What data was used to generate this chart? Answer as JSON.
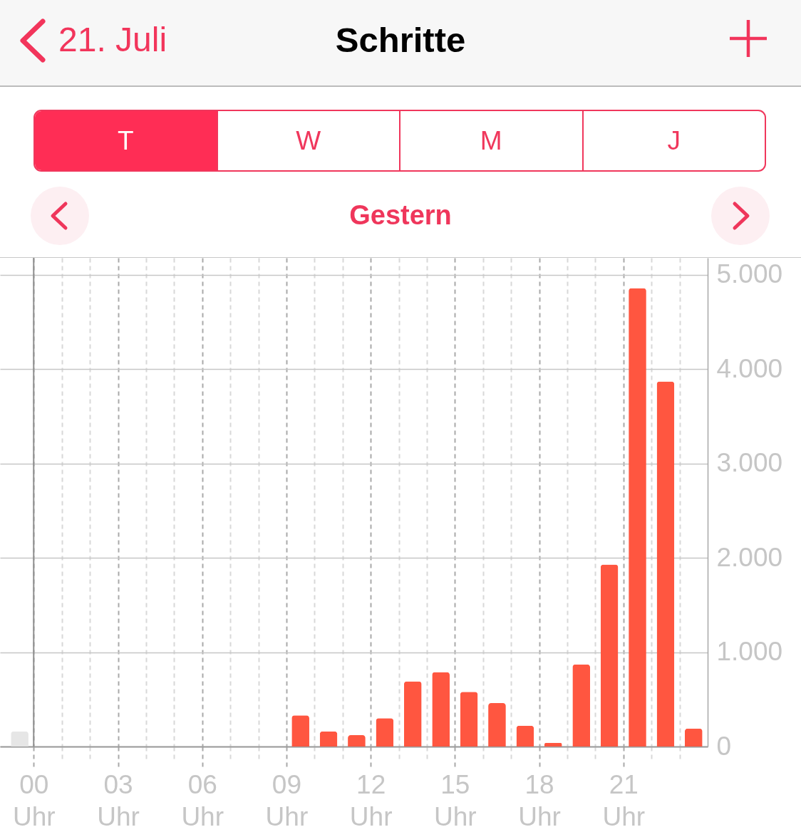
{
  "chart_data": {
    "type": "bar",
    "title": "Schritte",
    "subtitle": "Gestern",
    "annotations": [
      "21. Juli",
      "T",
      "W",
      "M",
      "J"
    ],
    "series": [
      {
        "color": "#ff5640",
        "x": [
          9.5,
          10.5,
          11.5,
          12.5,
          13.5,
          14.5,
          15.5,
          16.5,
          17.5,
          18.5,
          19.5,
          20.5,
          21.5,
          22.5,
          23.5
        ],
        "values": [
          330,
          160,
          120,
          300,
          690,
          790,
          580,
          460,
          220,
          40,
          870,
          1930,
          4860,
          3870,
          190
        ]
      },
      {
        "color": "#e6e6e6",
        "x": [
          -0.5
        ],
        "values": [
          160
        ]
      }
    ],
    "xlim": [
      -1.2,
      24
    ],
    "xticks": [
      {
        "value": 0,
        "label": "00 Uhr"
      },
      {
        "value": 1,
        "label": null
      },
      {
        "value": 2,
        "label": null
      },
      {
        "value": 3,
        "label": "03 Uhr"
      },
      {
        "value": 4,
        "label": null
      },
      {
        "value": 5,
        "label": null
      },
      {
        "value": 6,
        "label": "06 Uhr"
      },
      {
        "value": 7,
        "label": null
      },
      {
        "value": 8,
        "label": null
      },
      {
        "value": 9,
        "label": "09 Uhr"
      },
      {
        "value": 10,
        "label": null
      },
      {
        "value": 11,
        "label": null
      },
      {
        "value": 12,
        "label": "12 Uhr"
      },
      {
        "value": 13,
        "label": null
      },
      {
        "value": 14,
        "label": null
      },
      {
        "value": 15,
        "label": "15 Uhr"
      },
      {
        "value": 16,
        "label": null
      },
      {
        "value": 17,
        "label": null
      },
      {
        "value": 18,
        "label": "18 Uhr"
      },
      {
        "value": 19,
        "label": null
      },
      {
        "value": 20,
        "label": null
      },
      {
        "value": 21,
        "label": "21 Uhr"
      },
      {
        "value": 22,
        "label": null
      },
      {
        "value": 23,
        "label": null
      }
    ],
    "ylim": [
      0,
      5180
    ],
    "yticks": [
      0,
      {
        "value": 1000,
        "label": "1.000"
      },
      {
        "value": 2000,
        "label": "2.000"
      },
      {
        "value": 3000,
        "label": "3.000"
      },
      {
        "value": 4000,
        "label": "4.000"
      },
      {
        "value": 5000,
        "label": "5.000"
      }
    ],
    "grid": true,
    "ref_lines": [
      {
        "axis": "x",
        "value": 0,
        "color": "#8e8e8e"
      }
    ]
  }
}
